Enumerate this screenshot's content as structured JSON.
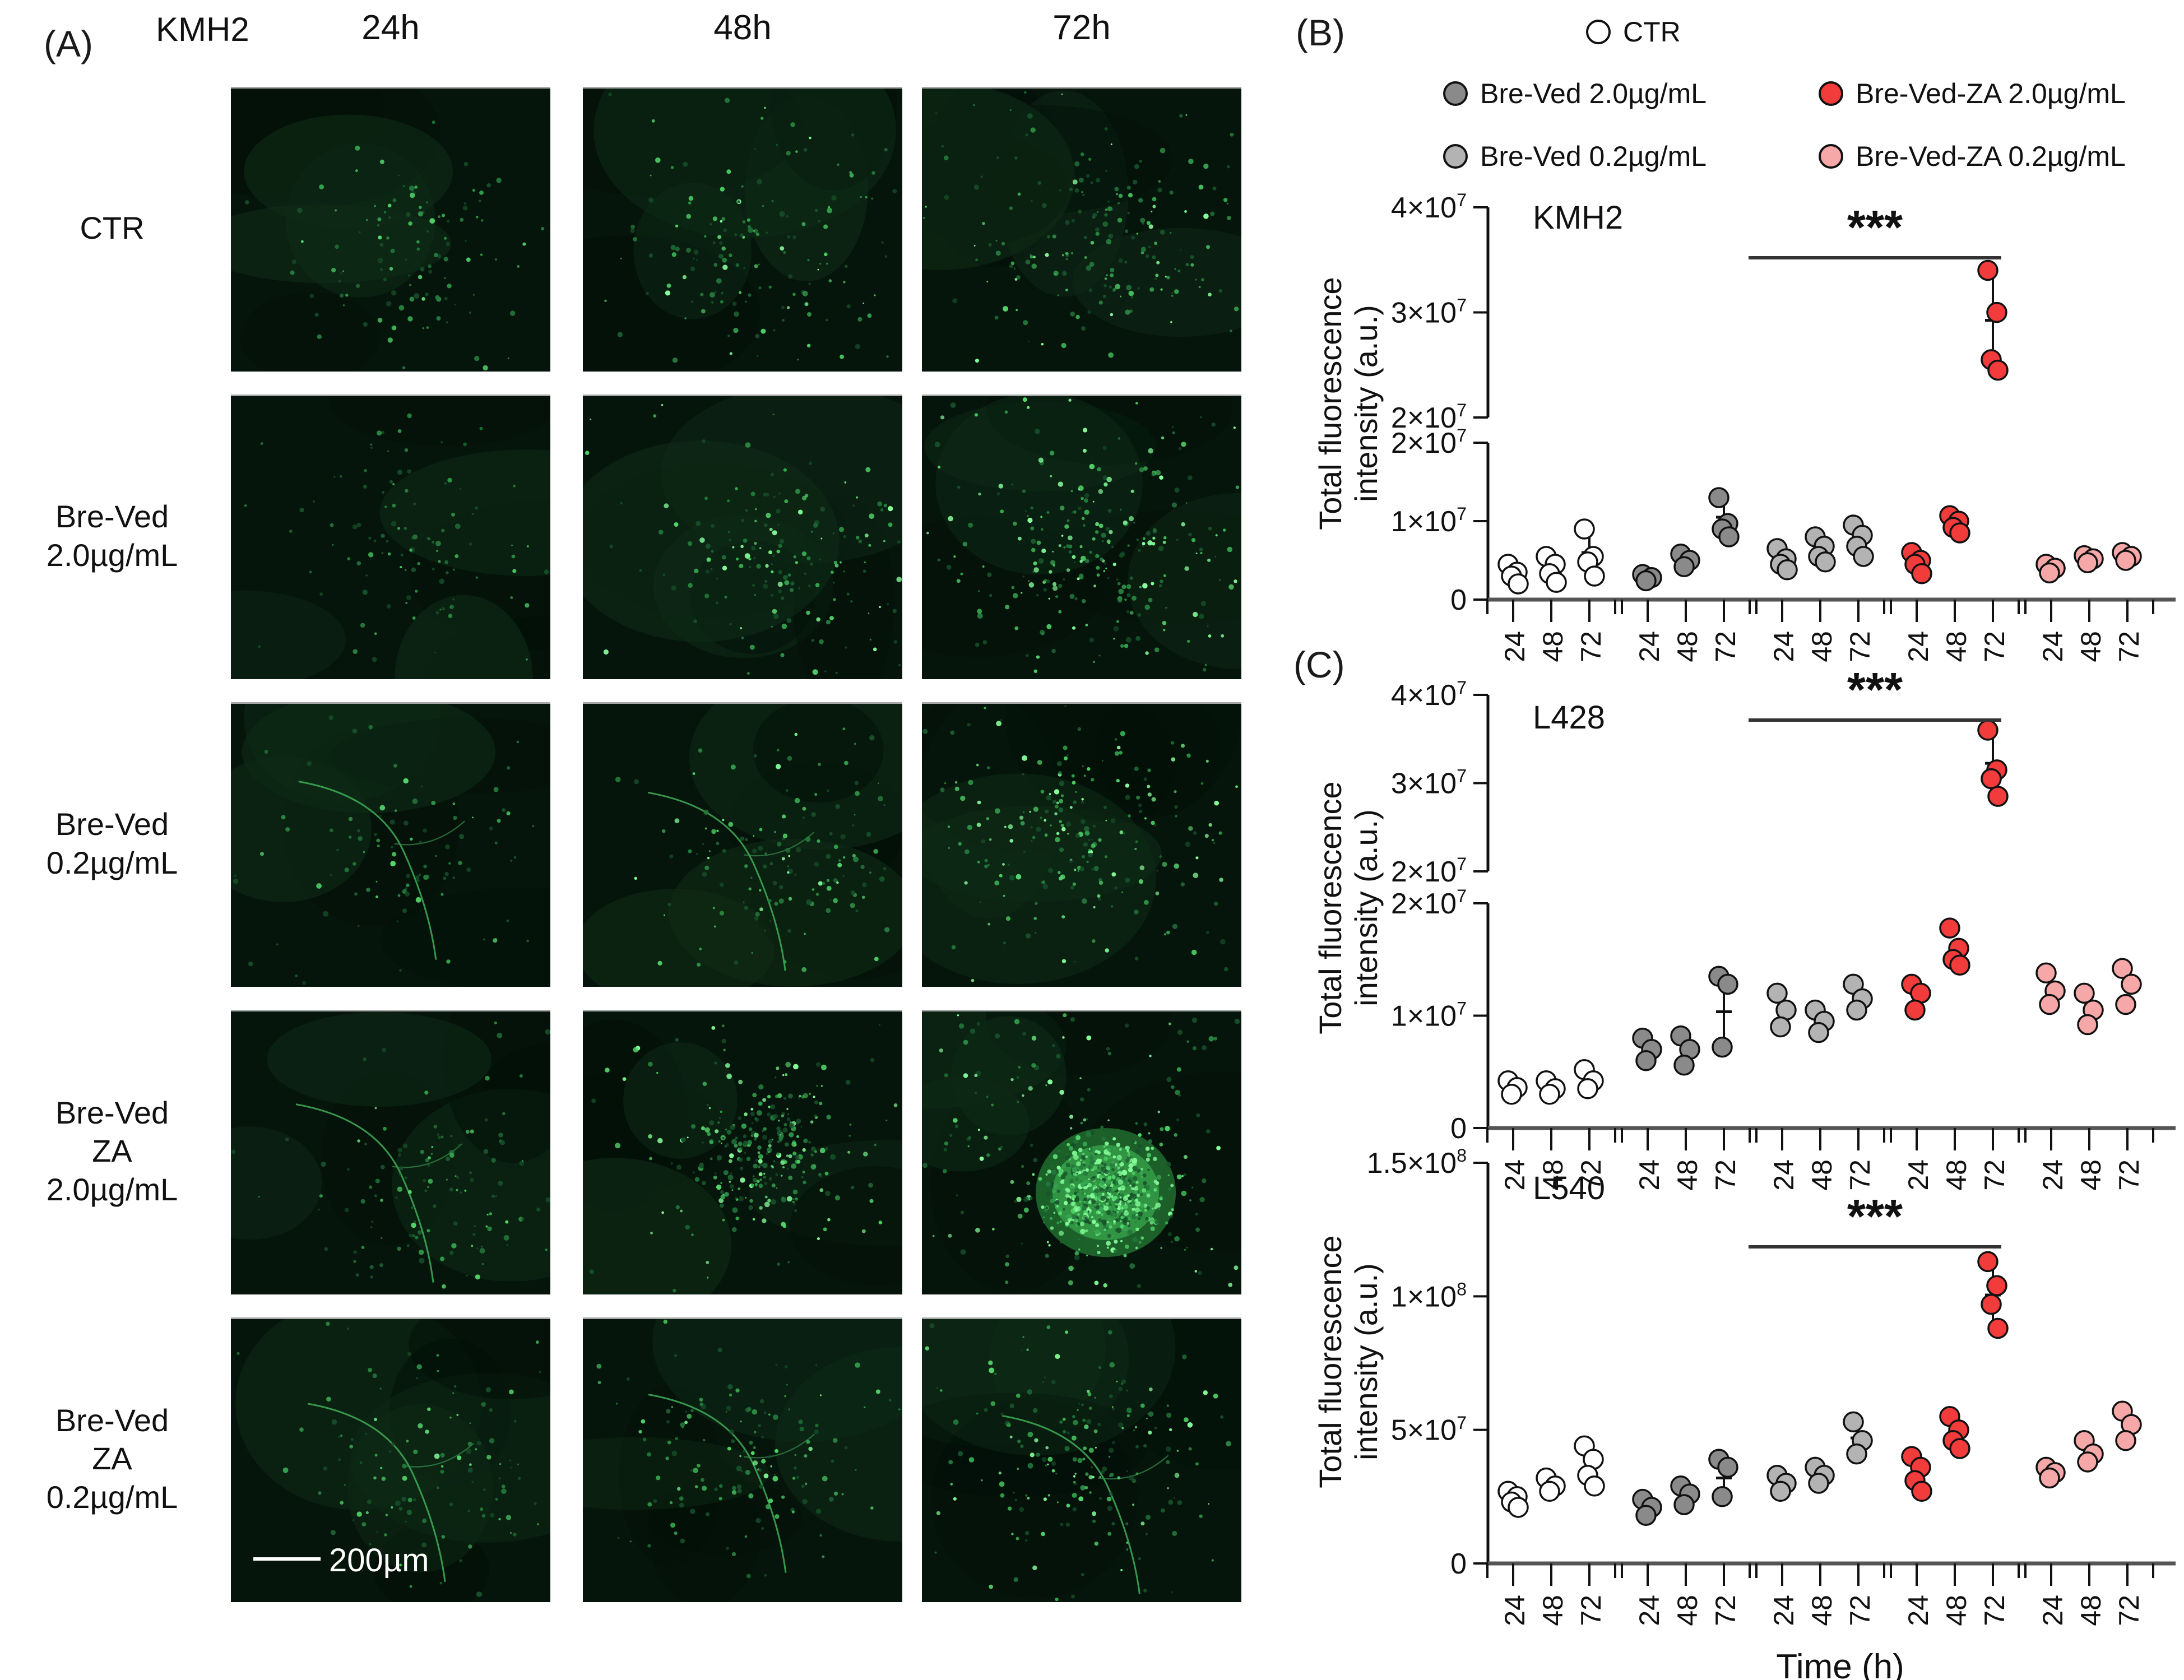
{
  "colors": {
    "ctr": "#ffffff",
    "bv20": "#8a8a8a",
    "bv02": "#b3b3b3",
    "bvza20": "#f23b3b",
    "bvza02": "#f6a8a8",
    "stroke": "#111111",
    "micro_bg": "#06150c",
    "micro_dot_bright": "#66e87e"
  },
  "panelA": {
    "label": "(A)",
    "cell_line_header": "KMH2",
    "col_headers": [
      "24h",
      "48h",
      "72h"
    ],
    "row_labels": [
      "CTR",
      "Bre-Ved\n2.0µg/mL",
      "Bre-Ved\n0.2µg/mL",
      "Bre-Ved\nZA\n2.0µg/mL",
      "Bre-Ved\nZA\n0.2µg/mL"
    ],
    "scale_bar_label": "200µm",
    "micrographs": [
      {
        "r": 0,
        "c": 0,
        "dots": 120,
        "spread": 1.0,
        "bright": 0.55,
        "streak": false,
        "blob": false,
        "scalebar": false
      },
      {
        "r": 0,
        "c": 1,
        "dots": 160,
        "spread": 1.1,
        "bright": 0.65,
        "streak": false,
        "blob": false,
        "scalebar": false
      },
      {
        "r": 0,
        "c": 2,
        "dots": 210,
        "spread": 1.25,
        "bright": 0.7,
        "streak": false,
        "blob": false,
        "scalebar": false
      },
      {
        "r": 1,
        "c": 0,
        "dots": 110,
        "spread": 1.15,
        "bright": 0.5,
        "streak": false,
        "blob": false,
        "scalebar": false
      },
      {
        "r": 1,
        "c": 1,
        "dots": 180,
        "spread": 1.1,
        "bright": 0.7,
        "streak": false,
        "blob": false,
        "scalebar": false
      },
      {
        "r": 1,
        "c": 2,
        "dots": 280,
        "spread": 1.2,
        "bright": 0.85,
        "streak": false,
        "blob": false,
        "scalebar": false
      },
      {
        "r": 2,
        "c": 0,
        "dots": 100,
        "spread": 1.1,
        "bright": 0.55,
        "streak": true,
        "blob": false,
        "scalebar": false
      },
      {
        "r": 2,
        "c": 1,
        "dots": 150,
        "spread": 1.1,
        "bright": 0.7,
        "streak": true,
        "blob": false,
        "scalebar": false
      },
      {
        "r": 2,
        "c": 2,
        "dots": 240,
        "spread": 1.2,
        "bright": 0.8,
        "streak": false,
        "blob": false,
        "scalebar": false
      },
      {
        "r": 3,
        "c": 0,
        "dots": 130,
        "spread": 1.0,
        "bright": 0.6,
        "streak": true,
        "blob": false,
        "scalebar": false
      },
      {
        "r": 3,
        "c": 1,
        "dots": 320,
        "spread": 0.8,
        "bright": 0.85,
        "streak": false,
        "blob": false,
        "scalebar": false
      },
      {
        "r": 3,
        "c": 2,
        "dots": 760,
        "spread": 0.55,
        "bright": 1.0,
        "streak": false,
        "blob": true,
        "scalebar": false
      },
      {
        "r": 4,
        "c": 0,
        "dots": 120,
        "spread": 1.15,
        "bright": 0.6,
        "streak": true,
        "blob": false,
        "scalebar": true
      },
      {
        "r": 4,
        "c": 1,
        "dots": 150,
        "spread": 1.1,
        "bright": 0.65,
        "streak": true,
        "blob": false,
        "scalebar": false
      },
      {
        "r": 4,
        "c": 2,
        "dots": 210,
        "spread": 1.2,
        "bright": 0.75,
        "streak": true,
        "blob": false,
        "scalebar": false
      }
    ]
  },
  "panelB_label": "(B)",
  "panelC_label": "(C)",
  "legend": {
    "items": [
      {
        "key": "ctr",
        "label": "CTR"
      },
      {
        "key": "bv20",
        "label": "Bre-Ved 2.0µg/mL"
      },
      {
        "key": "bv02",
        "label": "Bre-Ved 0.2µg/mL"
      },
      {
        "key": "bvza20",
        "label": "Bre-Ved-ZA 2.0µg/mL"
      },
      {
        "key": "bvza02",
        "label": "Bre-Ved-ZA 0.2µg/mL"
      }
    ]
  },
  "chart_data": [
    {
      "type": "scatter",
      "title": "KMH2",
      "ylabel_line1": "Total fluorescence",
      "ylabel_line2": "intensity (a.u.)",
      "xlabel": "",
      "x_group_tick_labels": [
        "24",
        "48",
        "72"
      ],
      "n_groups": 5,
      "broken_axis": true,
      "value_unit": 10000000,
      "segments": [
        {
          "min": 2,
          "max": 4,
          "ticks": [
            {
              "v": 4,
              "l": "4×10^7"
            },
            {
              "v": 3,
              "l": "3×10^7"
            },
            {
              "v": 2,
              "l": "2×10^7"
            }
          ]
        },
        {
          "min": 0,
          "max": 2,
          "ticks": [
            {
              "v": 2,
              "l": "2×10^7"
            },
            {
              "v": 1,
              "l": "1×10^7"
            },
            {
              "v": 0,
              "l": "0"
            }
          ]
        }
      ],
      "groups": [
        {
          "name": "CTR",
          "color_key": "ctr",
          "timepoints": [
            [
              0.45,
              0.35,
              0.3,
              0.2
            ],
            [
              0.55,
              0.45,
              0.33,
              0.22
            ],
            [
              0.9,
              0.55,
              0.48,
              0.3
            ]
          ]
        },
        {
          "name": "Bre-Ved 2.0µg/mL",
          "color_key": "bv20",
          "timepoints": [
            [
              0.32,
              0.28,
              0.24
            ],
            [
              0.58,
              0.5,
              0.42
            ],
            [
              1.3,
              0.97,
              0.9,
              0.8
            ]
          ]
        },
        {
          "name": "Bre-Ved 0.2µg/mL",
          "color_key": "bv02",
          "timepoints": [
            [
              0.65,
              0.52,
              0.45,
              0.38
            ],
            [
              0.8,
              0.68,
              0.55,
              0.48
            ],
            [
              0.95,
              0.82,
              0.68,
              0.55
            ]
          ]
        },
        {
          "name": "Bre-Ved-ZA 2.0µg/mL",
          "color_key": "bvza20",
          "timepoints": [
            [
              0.6,
              0.5,
              0.45,
              0.33
            ],
            [
              1.07,
              1.0,
              0.92,
              0.85
            ],
            [
              3.4,
              3.0,
              2.55,
              2.45
            ]
          ]
        },
        {
          "name": "Bre-Ved-ZA 0.2µg/mL",
          "color_key": "bvza02",
          "timepoints": [
            [
              0.45,
              0.4,
              0.34
            ],
            [
              0.56,
              0.52,
              0.47
            ],
            [
              0.6,
              0.55,
              0.5
            ]
          ]
        }
      ],
      "error_bars": [
        [
          0,
          2
        ],
        [
          1,
          2
        ],
        [
          3,
          2
        ]
      ],
      "sig": {
        "label": "***"
      }
    },
    {
      "type": "scatter",
      "title": "L428",
      "ylabel_line1": "Total fluorescence",
      "ylabel_line2": "intensity (a.u.)",
      "xlabel": "",
      "x_group_tick_labels": [
        "24",
        "48",
        "72"
      ],
      "n_groups": 5,
      "broken_axis": true,
      "value_unit": 10000000,
      "segments": [
        {
          "min": 2,
          "max": 4,
          "ticks": [
            {
              "v": 4,
              "l": "4×10^7"
            },
            {
              "v": 3,
              "l": "3×10^7"
            },
            {
              "v": 2,
              "l": "2×10^7"
            }
          ]
        },
        {
          "min": 0,
          "max": 2,
          "ticks": [
            {
              "v": 2,
              "l": "2×10^7"
            },
            {
              "v": 1,
              "l": "1×10^7"
            },
            {
              "v": 0,
              "l": "0"
            }
          ]
        }
      ],
      "groups": [
        {
          "name": "CTR",
          "color_key": "ctr",
          "timepoints": [
            [
              0.42,
              0.36,
              0.3
            ],
            [
              0.42,
              0.35,
              0.3
            ],
            [
              0.52,
              0.42,
              0.35
            ]
          ]
        },
        {
          "name": "Bre-Ved 2.0µg/mL",
          "color_key": "bv20",
          "timepoints": [
            [
              0.8,
              0.7,
              0.6
            ],
            [
              0.82,
              0.7,
              0.56
            ],
            [
              1.35,
              1.28,
              0.72
            ]
          ]
        },
        {
          "name": "Bre-Ved 0.2µg/mL",
          "color_key": "bv02",
          "timepoints": [
            [
              1.2,
              1.05,
              0.9
            ],
            [
              1.05,
              0.95,
              0.85
            ],
            [
              1.28,
              1.15,
              1.05
            ]
          ]
        },
        {
          "name": "Bre-Ved-ZA 2.0µg/mL",
          "color_key": "bvza20",
          "timepoints": [
            [
              1.28,
              1.2,
              1.05
            ],
            [
              1.78,
              1.6,
              1.5,
              1.45
            ],
            [
              3.6,
              3.15,
              3.05,
              2.85
            ]
          ]
        },
        {
          "name": "Bre-Ved-ZA 0.2µg/mL",
          "color_key": "bvza02",
          "timepoints": [
            [
              1.38,
              1.22,
              1.1
            ],
            [
              1.2,
              1.05,
              0.92
            ],
            [
              1.42,
              1.28,
              1.1
            ]
          ]
        }
      ],
      "error_bars": [
        [
          1,
          2
        ],
        [
          3,
          2
        ]
      ],
      "sig": {
        "label": "***"
      }
    },
    {
      "type": "scatter",
      "title": "L540",
      "ylabel_line1": "Total fluorescence",
      "ylabel_line2": "intensity (a.u.)",
      "xlabel": "Time (h)",
      "x_group_tick_labels": [
        "24",
        "48",
        "72"
      ],
      "n_groups": 5,
      "broken_axis": false,
      "value_unit": 10000000,
      "segments": [
        {
          "min": 0,
          "max": 15,
          "ticks": [
            {
              "v": 15,
              "l": "1.5×10^8"
            },
            {
              "v": 10,
              "l": "1×10^8"
            },
            {
              "v": 5,
              "l": "5×10^7"
            },
            {
              "v": 0,
              "l": "0"
            }
          ]
        }
      ],
      "groups": [
        {
          "name": "CTR",
          "color_key": "ctr",
          "timepoints": [
            [
              2.7,
              2.5,
              2.3,
              2.1
            ],
            [
              3.2,
              2.9,
              2.7
            ],
            [
              4.4,
              3.9,
              3.3,
              2.9
            ]
          ]
        },
        {
          "name": "Bre-Ved 2.0µg/mL",
          "color_key": "bv20",
          "timepoints": [
            [
              2.4,
              2.1,
              1.8
            ],
            [
              2.9,
              2.6,
              2.2
            ],
            [
              3.9,
              3.6,
              2.5
            ]
          ]
        },
        {
          "name": "Bre-Ved 0.2µg/mL",
          "color_key": "bv02",
          "timepoints": [
            [
              3.3,
              3.0,
              2.7
            ],
            [
              3.6,
              3.3,
              3.0
            ],
            [
              5.3,
              4.6,
              4.1
            ]
          ]
        },
        {
          "name": "Bre-Ved-ZA 2.0µg/mL",
          "color_key": "bvza20",
          "timepoints": [
            [
              4.0,
              3.6,
              3.1,
              2.7
            ],
            [
              5.5,
              5.0,
              4.6,
              4.3
            ],
            [
              11.3,
              10.4,
              9.7,
              8.8
            ]
          ]
        },
        {
          "name": "Bre-Ved-ZA 0.2µg/mL",
          "color_key": "bvza02",
          "timepoints": [
            [
              3.6,
              3.4,
              3.2
            ],
            [
              4.6,
              4.1,
              3.8
            ],
            [
              5.7,
              5.2,
              4.6
            ]
          ]
        }
      ],
      "error_bars": [
        [
          1,
          2
        ],
        [
          2,
          2
        ],
        [
          3,
          2
        ]
      ],
      "sig": {
        "label": "***"
      }
    }
  ]
}
